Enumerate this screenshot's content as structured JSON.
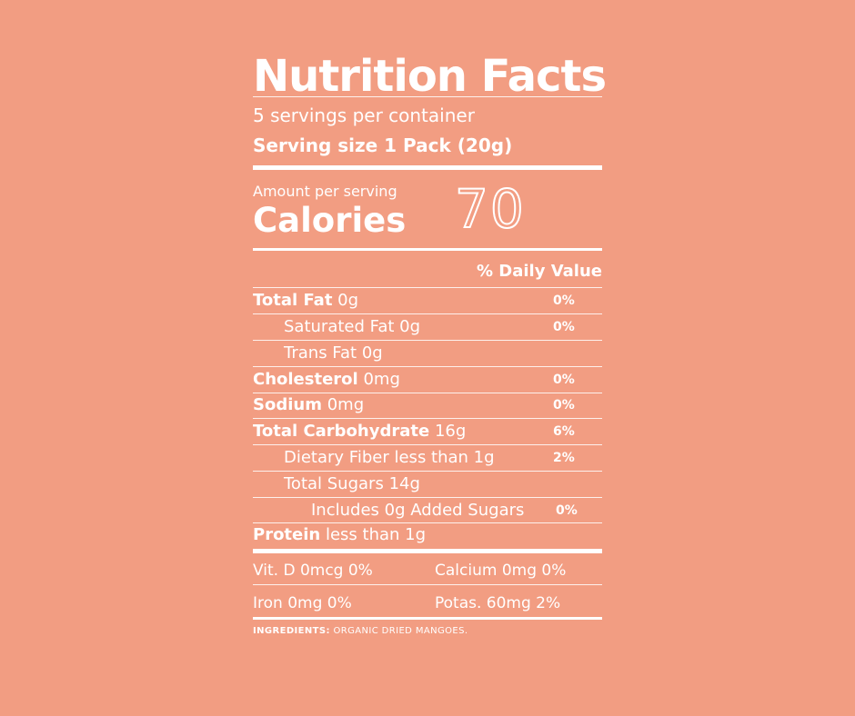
{
  "title": "Nutrition Facts",
  "servings_per_container": "5 servings per container",
  "serving_size": "Serving size 1 Pack (20g)",
  "amount_per_serving": "Amount per serving",
  "calories_label": "Calories",
  "calories_value": "70",
  "daily_value_header": "% Daily Value",
  "nutrients": [
    {
      "name": "Total Fat",
      "amount": "0g",
      "dv": "0%"
    },
    {
      "name": "Saturated Fat",
      "amount": "0g",
      "dv": "0%"
    },
    {
      "name": "Trans Fat",
      "amount": "0g",
      "dv": ""
    },
    {
      "name": "Cholesterol",
      "amount": "0mg",
      "dv": "0%"
    },
    {
      "name": "Sodium",
      "amount": "0mg",
      "dv": "0%"
    },
    {
      "name": "Total Carbohydrate",
      "amount": "16g",
      "dv": "6%"
    },
    {
      "name": "Dietary Fiber",
      "amount": "less than 1g",
      "dv": "2%"
    },
    {
      "name": "Total Sugars",
      "amount": "14g",
      "dv": ""
    },
    {
      "name": "Includes",
      "amount": "0g Added Sugars",
      "dv": "0%"
    },
    {
      "name": "Protein",
      "amount": "less than 1g",
      "dv": ""
    }
  ],
  "vitamins": [
    {
      "text": "Vit. D 0mcg 0%"
    },
    {
      "text": "Calcium 0mg 0%"
    },
    {
      "text": "Iron 0mg 0%"
    },
    {
      "text": "Potas. 60mg 2%"
    }
  ],
  "ingredients_label": "INGREDIENTS:",
  "ingredients_text": "ORGANIC DRIED MANGOES.",
  "colors": {
    "background": "#f29d82",
    "foreground": "#ffffff"
  }
}
